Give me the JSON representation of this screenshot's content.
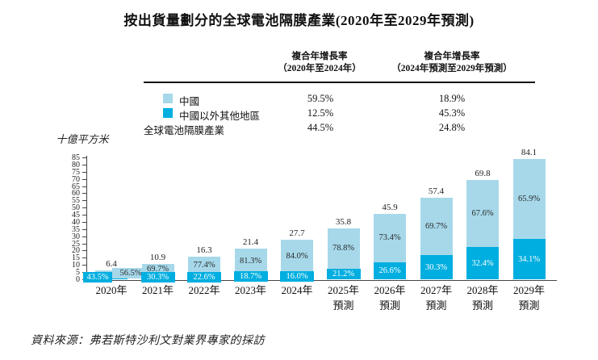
{
  "title": "按出貨量劃分的全球電池隔膜產業(2020年至2029年預測)",
  "cagr_table": {
    "columns": [
      {
        "line1": "複合年增長率",
        "line2": "（2020年至2024年）"
      },
      {
        "line1": "複合年增長率",
        "line2": "（2024年預測至2029年預測）"
      }
    ],
    "rows": [
      {
        "label": "中國",
        "values": [
          "59.5%",
          "18.9%"
        ]
      },
      {
        "label": "中國以外其他地區",
        "values": [
          "12.5%",
          "45.3%"
        ]
      },
      {
        "label": "全球電池隔膜產業",
        "values": [
          "44.5%",
          "24.8%"
        ]
      }
    ]
  },
  "chart_data": {
    "type": "bar",
    "stacked": true,
    "unit_label": "十億平方米",
    "ylim": [
      0,
      85
    ],
    "ytick_step": 5,
    "categories": [
      {
        "label": "2020年",
        "sub": ""
      },
      {
        "label": "2021年",
        "sub": ""
      },
      {
        "label": "2022年",
        "sub": ""
      },
      {
        "label": "2023年",
        "sub": ""
      },
      {
        "label": "2024年",
        "sub": ""
      },
      {
        "label": "2025年",
        "sub": "預測"
      },
      {
        "label": "2026年",
        "sub": "預測"
      },
      {
        "label": "2027年",
        "sub": "預測"
      },
      {
        "label": "2028年",
        "sub": "預測"
      },
      {
        "label": "2029年",
        "sub": "預測"
      }
    ],
    "totals": [
      6.4,
      10.9,
      16.3,
      21.4,
      27.7,
      35.8,
      45.9,
      57.4,
      69.8,
      84.1
    ],
    "series": [
      {
        "name": "中國",
        "color": "#a6d8ea",
        "share_pct": [
          56.5,
          69.7,
          77.4,
          81.3,
          84.0,
          78.8,
          73.4,
          69.7,
          67.6,
          65.9
        ]
      },
      {
        "name": "中國以外其他地區",
        "color": "#00aee0",
        "share_pct": [
          43.5,
          30.3,
          22.6,
          18.7,
          16.0,
          21.2,
          26.6,
          30.3,
          32.4,
          34.1
        ]
      }
    ],
    "legend_position": "table-left",
    "grid": false
  },
  "source": "資料來源：弗若斯特沙利文對業界專家的採訪"
}
